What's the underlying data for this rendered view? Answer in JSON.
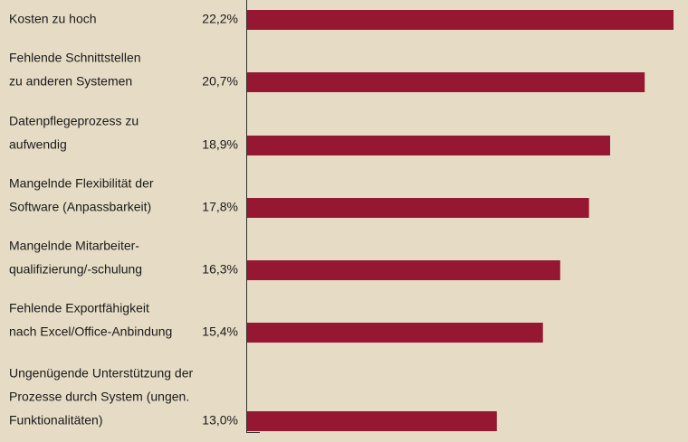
{
  "chart_data": {
    "type": "bar",
    "orientation": "horizontal",
    "categories": [
      [
        "Kosten zu hoch"
      ],
      [
        "Fehlende Schnittstellen",
        "zu anderen Systemen"
      ],
      [
        "Datenpflegeprozess zu",
        "aufwendig"
      ],
      [
        "Mangelnde Flexibilität der",
        "Software (Anpassbarkeit)"
      ],
      [
        "Mangelnde Mitarbeiter-",
        "qualifizierung/-schulung"
      ],
      [
        "Fehlende Exportfähigkeit",
        "nach Excel/Office-Anbindung"
      ],
      [
        "Ungenügende Unterstützung der",
        "Prozesse durch System (ungen.",
        "Funktionalitäten)"
      ]
    ],
    "values": [
      22.2,
      20.7,
      18.9,
      17.8,
      16.3,
      15.4,
      13.0
    ],
    "value_labels": [
      "22,2%",
      "20,7%",
      "18,9%",
      "17,8%",
      "16,3%",
      "15,4%",
      "13,0%"
    ],
    "color": "#961732"
  }
}
